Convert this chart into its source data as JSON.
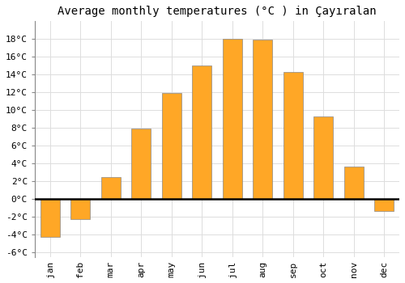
{
  "title": "Average monthly temperatures (°C ) in Çayıralan",
  "months": [
    "jan",
    "feb",
    "mar",
    "apr",
    "may",
    "jun",
    "jul",
    "aug",
    "sep",
    "oct",
    "nov",
    "dec"
  ],
  "values": [
    -4.2,
    -2.2,
    2.5,
    7.9,
    11.9,
    15.0,
    18.0,
    17.9,
    14.3,
    9.3,
    3.7,
    -1.3
  ],
  "bar_color": "#FFA726",
  "bar_edge_color": "#888888",
  "ylim": [
    -6.5,
    20
  ],
  "yticks": [
    -6,
    -4,
    -2,
    0,
    2,
    4,
    6,
    8,
    10,
    12,
    14,
    16,
    18
  ],
  "background_color": "#ffffff",
  "grid_color": "#dddddd",
  "title_fontsize": 10,
  "tick_fontsize": 8,
  "bar_width": 0.65
}
